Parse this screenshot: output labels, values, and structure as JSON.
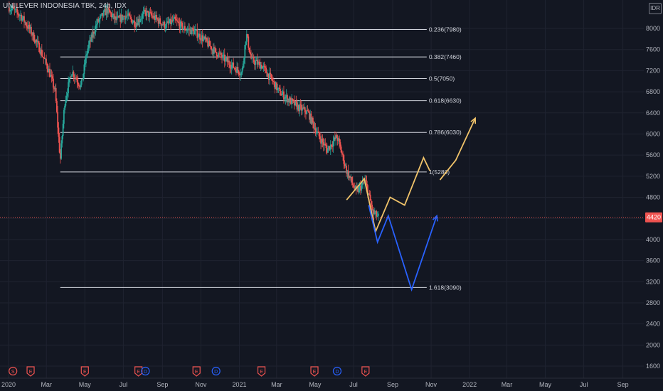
{
  "header": {
    "title": "UNILEVER INDONESIA TBK, 24h, IDX",
    "currency": "IDR"
  },
  "colors": {
    "background": "#131722",
    "up": "#26a69a",
    "down": "#ef5350",
    "fib_line": "#d1d4dc",
    "projection_bull": "#f0c36a",
    "projection_bear": "#2962ff",
    "price_tag": "#ef5350"
  },
  "chart_data": {
    "type": "candlestick",
    "ylim": [
      1400,
      8500
    ],
    "y_ticks": [
      8000,
      7600,
      7200,
      6800,
      6400,
      6000,
      5600,
      5200,
      4800,
      4400,
      4000,
      3600,
      3200,
      2800,
      2400,
      2000,
      1600
    ],
    "x_ticks": [
      "2020",
      "Mar",
      "May",
      "Jul",
      "Sep",
      "Nov",
      "2021",
      "Mar",
      "May",
      "Jul",
      "Sep",
      "Nov",
      "2022",
      "Mar",
      "May",
      "Jul",
      "Sep"
    ],
    "last_price": "4420",
    "fib_levels": [
      {
        "label": "0.236(7980)",
        "value": 7980
      },
      {
        "label": "0.382(7460)",
        "value": 7460
      },
      {
        "label": "0.5(7050)",
        "value": 7050
      },
      {
        "label": "0.618(6630)",
        "value": 6630
      },
      {
        "label": "0.786(6030)",
        "value": 6030
      },
      {
        "label": "1(5280)",
        "value": 5280
      },
      {
        "label": "1.618(3090)",
        "value": 3090
      }
    ],
    "price_path": [
      [
        "2020-01-02",
        8400
      ],
      [
        "2020-01-20",
        8250
      ],
      [
        "2020-02-05",
        7950
      ],
      [
        "2020-02-20",
        7600
      ],
      [
        "2020-03-05",
        7200
      ],
      [
        "2020-03-15",
        6800
      ],
      [
        "2020-03-23",
        5500
      ],
      [
        "2020-03-30",
        6600
      ],
      [
        "2020-04-10",
        7200
      ],
      [
        "2020-04-25",
        6900
      ],
      [
        "2020-05-05",
        7600
      ],
      [
        "2020-05-20",
        8100
      ],
      [
        "2020-06-05",
        8350
      ],
      [
        "2020-06-20",
        8150
      ],
      [
        "2020-07-05",
        8250
      ],
      [
        "2020-07-20",
        8100
      ],
      [
        "2020-08-05",
        8300
      ],
      [
        "2020-08-20",
        8200
      ],
      [
        "2020-09-05",
        8050
      ],
      [
        "2020-09-20",
        8150
      ],
      [
        "2020-10-05",
        8000
      ],
      [
        "2020-10-20",
        7950
      ],
      [
        "2020-11-05",
        7800
      ],
      [
        "2020-11-20",
        7600
      ],
      [
        "2020-12-05",
        7450
      ],
      [
        "2020-12-20",
        7300
      ],
      [
        "2021-01-05",
        7150
      ],
      [
        "2021-01-12",
        7900
      ],
      [
        "2021-01-20",
        7400
      ],
      [
        "2021-02-05",
        7300
      ],
      [
        "2021-02-20",
        7050
      ],
      [
        "2021-03-05",
        6800
      ],
      [
        "2021-03-20",
        6650
      ],
      [
        "2021-04-05",
        6500
      ],
      [
        "2021-04-20",
        6400
      ],
      [
        "2021-05-05",
        6000
      ],
      [
        "2021-05-20",
        5700
      ],
      [
        "2021-06-05",
        5950
      ],
      [
        "2021-06-20",
        5300
      ],
      [
        "2021-07-05",
        4900
      ],
      [
        "2021-07-20",
        5100
      ],
      [
        "2021-08-01",
        4500
      ],
      [
        "2021-08-10",
        4420
      ]
    ],
    "projections": [
      {
        "name": "",
        "points": [
          [
            "2021-06-20",
            4750
          ],
          [
            "2021-07-18",
            5150
          ],
          [
            "2021-08-05",
            4150
          ],
          [
            "2021-08-28",
            4800
          ],
          [
            "2021-09-20",
            4650
          ],
          [
            "2021-10-20",
            5550
          ],
          [
            "2021-10-30",
            5300
          ]
        ]
      },
      {
        "name": "",
        "points": [
          [
            "2021-07-25",
            4650
          ],
          [
            "2021-08-08",
            3950
          ],
          [
            "2021-08-25",
            4450
          ],
          [
            "2021-10-01",
            3050
          ],
          [
            "2021-11-10",
            4450
          ]
        ]
      },
      {
        "name": "",
        "points": [
          [
            "2021-11-15",
            5130
          ],
          [
            "2021-12-10",
            5500
          ],
          [
            "2022-01-10",
            6300
          ]
        ]
      }
    ],
    "events": [
      {
        "kind": "S",
        "date": "2020-01-08"
      },
      {
        "kind": "E",
        "date": "2020-02-05"
      },
      {
        "kind": "E",
        "date": "2020-05-01"
      },
      {
        "kind": "E",
        "date": "2020-07-25"
      },
      {
        "kind": "D",
        "date": "2020-08-05"
      },
      {
        "kind": "E",
        "date": "2020-10-25"
      },
      {
        "kind": "D",
        "date": "2020-11-25"
      },
      {
        "kind": "E",
        "date": "2021-02-05"
      },
      {
        "kind": "E",
        "date": "2021-04-30"
      },
      {
        "kind": "D",
        "date": "2021-06-05"
      },
      {
        "kind": "E",
        "date": "2021-07-20"
      }
    ]
  }
}
